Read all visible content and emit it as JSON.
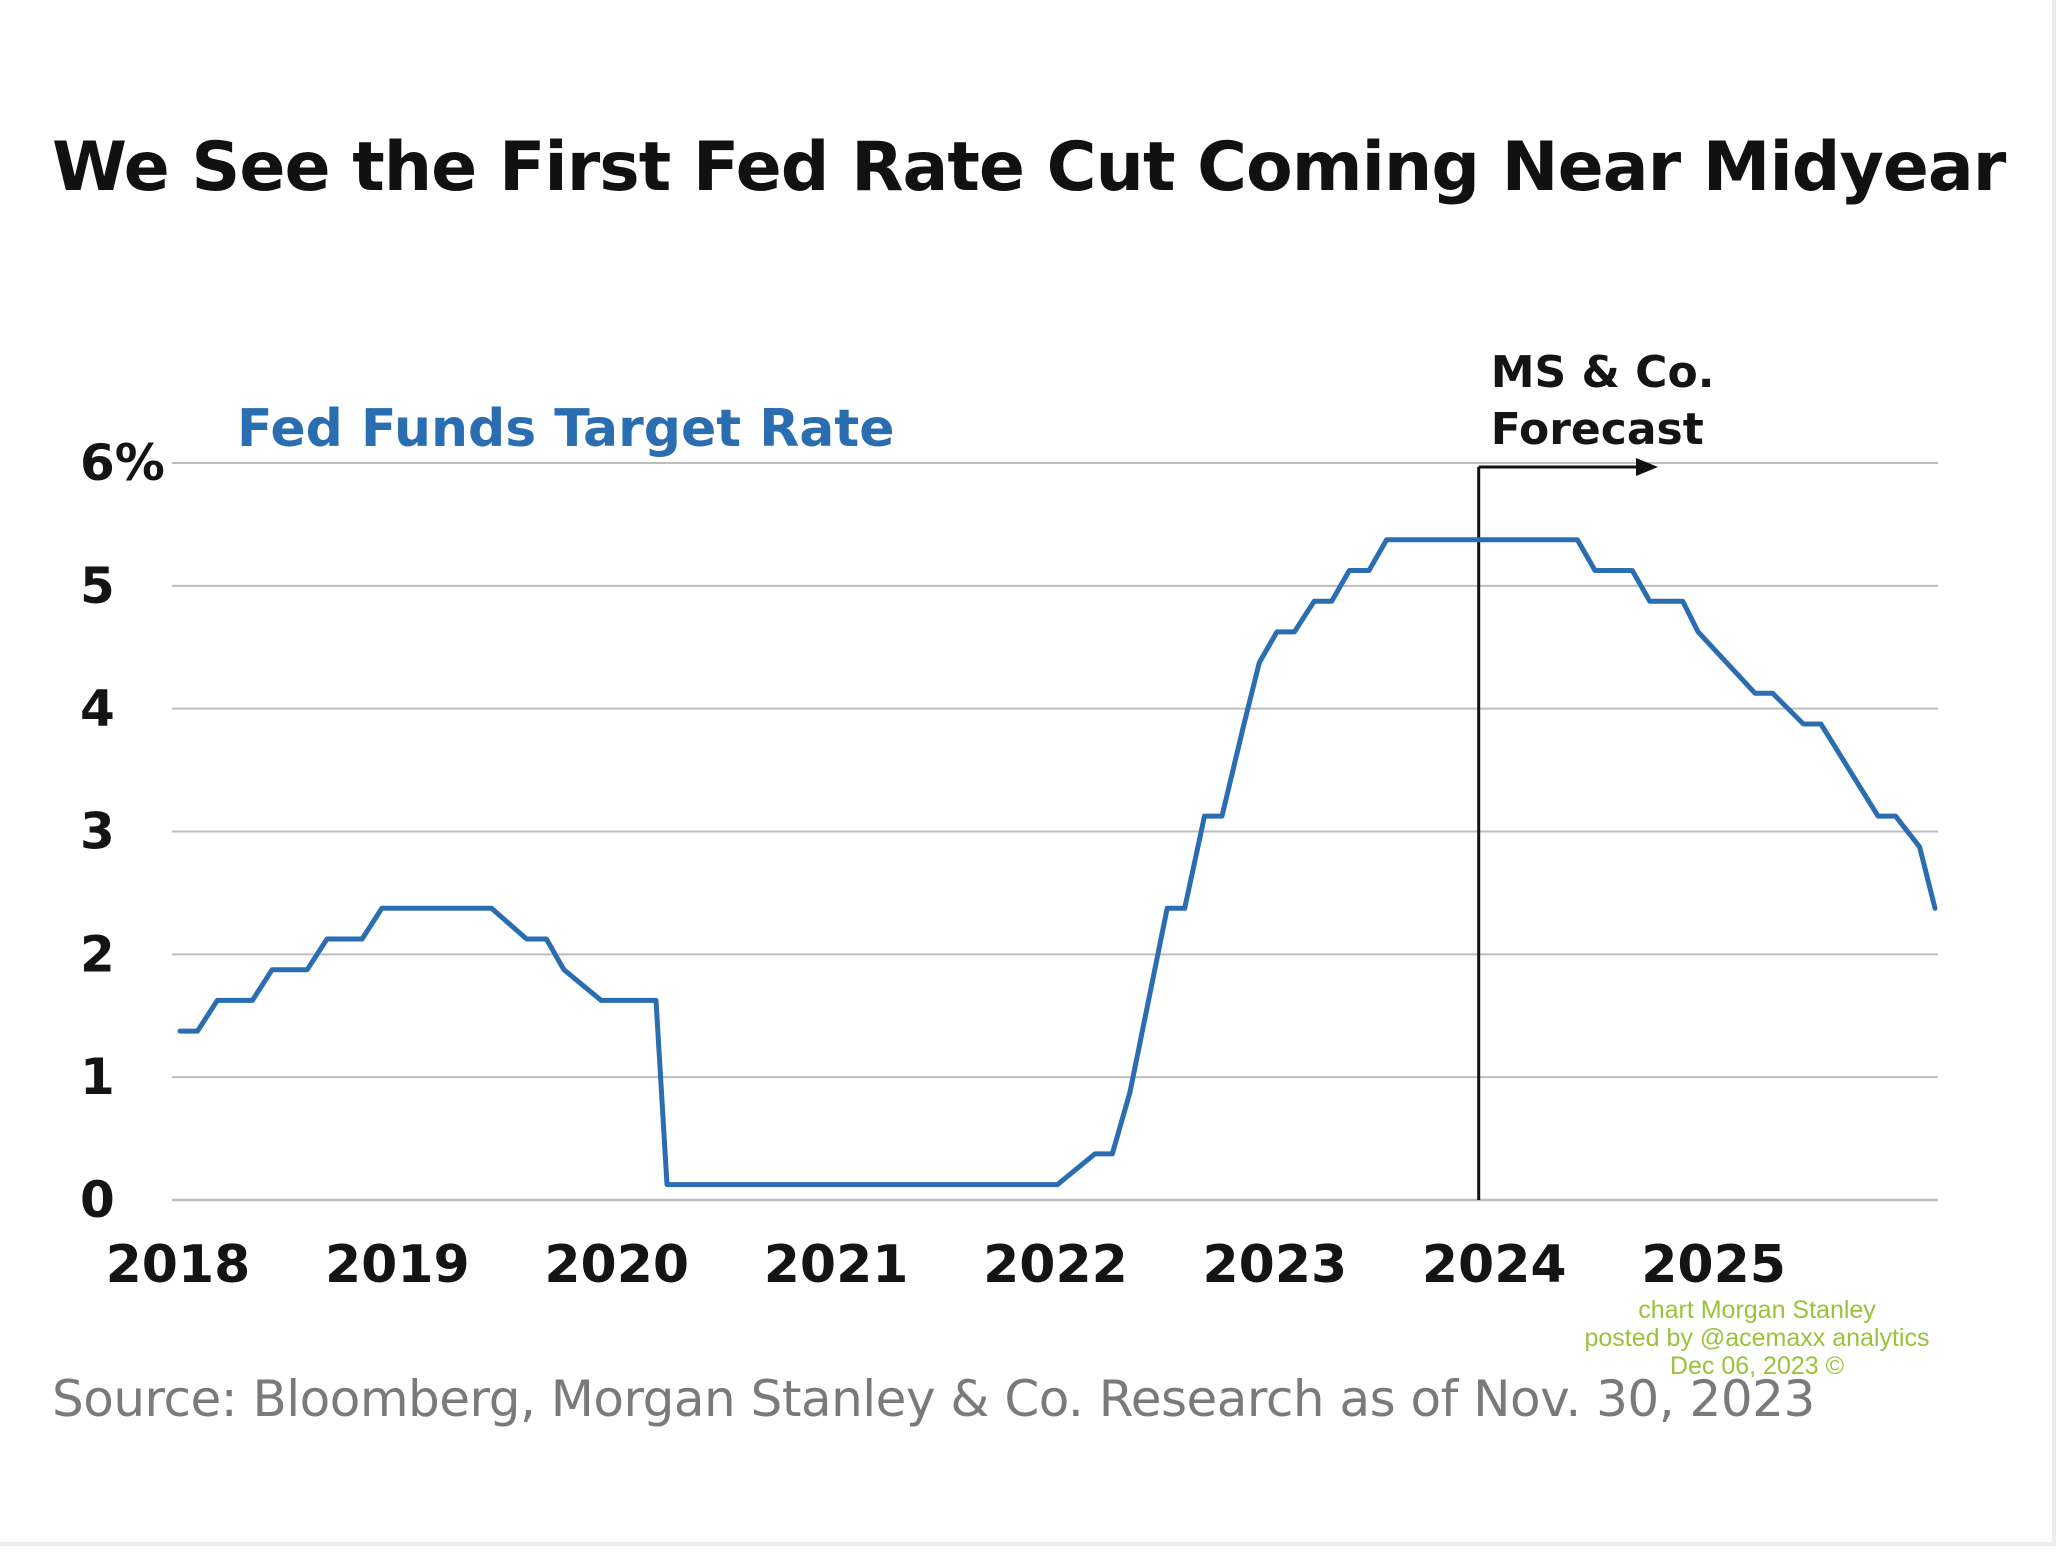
{
  "title": "We See the First Fed Rate Cut Coming Near Midyear",
  "source": "Source: Bloomberg, Morgan Stanley & Co. Research as of Nov. 30, 2023",
  "watermark": {
    "line1": "chart Morgan Stanley",
    "line2": "posted by @acemaxx analytics",
    "line3": "Dec 06, 2023 ©"
  },
  "colors": {
    "series": "#2a6db0",
    "grid": "#bdbdbd",
    "axis_text": "#141414",
    "forecast_line": "#111111",
    "watermark": "#9bc23a"
  },
  "chart_data": {
    "type": "line",
    "title": "We See the First Fed Rate Cut Coming Near Midyear",
    "series_label": "Fed Funds Target Rate",
    "forecast_label": [
      "MS & Co.",
      "Forecast"
    ],
    "forecast_start": 2023.92,
    "xlim": [
      2018,
      2026.0
    ],
    "ylim": [
      0,
      6
    ],
    "ytick_labels": [
      "0",
      "1",
      "2",
      "3",
      "4",
      "5",
      "6%"
    ],
    "yticks": [
      0,
      1,
      2,
      3,
      4,
      5,
      6
    ],
    "xtick_labels": [
      "2018",
      "2019",
      "2020",
      "2021",
      "2022",
      "2023",
      "2024",
      "2025"
    ],
    "xticks": [
      2018,
      2019,
      2020,
      2021,
      2022,
      2023,
      2024,
      2025
    ],
    "grid": true,
    "series": [
      {
        "name": "Fed Funds Target Rate",
        "x": [
          2018.0,
          2018.08,
          2018.17,
          2018.33,
          2018.42,
          2018.58,
          2018.67,
          2018.83,
          2018.92,
          2019.08,
          2019.17,
          2019.42,
          2019.58,
          2019.67,
          2019.75,
          2019.92,
          2020.0,
          2020.17,
          2020.22,
          2020.3,
          2022.0,
          2022.17,
          2022.25,
          2022.33,
          2022.5,
          2022.58,
          2022.67,
          2022.75,
          2022.85,
          2022.92,
          2023.0,
          2023.08,
          2023.17,
          2023.25,
          2023.33,
          2023.42,
          2023.5,
          2023.58,
          2023.67,
          2023.92,
          2024.0,
          2024.37,
          2024.45,
          2024.62,
          2024.7,
          2024.85,
          2024.92,
          2025.18,
          2025.26,
          2025.4,
          2025.48,
          2025.74,
          2025.82,
          2025.93,
          2026.0
        ],
        "y": [
          1.375,
          1.375,
          1.625,
          1.625,
          1.875,
          1.875,
          2.125,
          2.125,
          2.375,
          2.375,
          2.375,
          2.375,
          2.125,
          2.125,
          1.875,
          1.625,
          1.625,
          1.625,
          0.125,
          0.125,
          0.125,
          0.375,
          0.375,
          0.875,
          2.375,
          2.375,
          3.125,
          3.125,
          3.875,
          4.375,
          4.625,
          4.625,
          4.875,
          4.875,
          5.125,
          5.125,
          5.375,
          5.375,
          5.375,
          5.375,
          5.375,
          5.375,
          5.125,
          5.125,
          4.875,
          4.875,
          4.625,
          4.125,
          4.125,
          3.875,
          3.875,
          3.125,
          3.125,
          2.875,
          2.375
        ]
      }
    ]
  }
}
